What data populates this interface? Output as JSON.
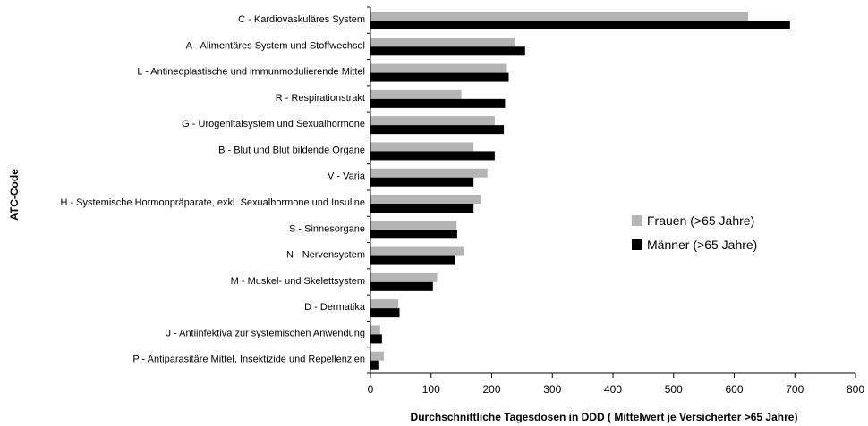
{
  "chart_data": {
    "type": "bar",
    "orientation": "horizontal",
    "categories": [
      "C - Kardiovaskuläres System",
      "A - Alimentäres System und Stoffwechsel",
      "L - Antineoplastische und immunmodulierende Mittel",
      "R - Respirationstrakt",
      "G - Urogenitalsystem und Sexualhormone",
      "B - Blut und Blut bildende Organe",
      "V - Varia",
      "H - Systemische Hormonpräparate, exkl. Sexualhormone und Insuline",
      "S - Sinnesorgane",
      "N - Nervensystem",
      "M - Muskel- und Skelettsystem",
      "D - Dermatika",
      "J - Antiinfektiva zur systemischen Anwendung",
      "P - Antiparasitäre Mittel, Insektizide und Repellenzien"
    ],
    "series": [
      {
        "name": "Frauen (>65 Jahre)",
        "color": "#b4b4b4",
        "values": [
          623,
          238,
          225,
          150,
          205,
          170,
          193,
          182,
          142,
          155,
          110,
          46,
          16,
          22
        ]
      },
      {
        "name": "Männer (>65 Jahre)",
        "color": "#000000",
        "values": [
          692,
          255,
          228,
          222,
          220,
          205,
          170,
          170,
          143,
          140,
          103,
          48,
          19,
          13
        ]
      }
    ],
    "xlabel": "Durchschnittliche Tagesdosen in DDD ( Mittelwert je Versicherter >65 Jahre)",
    "ylabel": "ATC-Code",
    "xlim": [
      0,
      800
    ],
    "xticks": [
      0,
      100,
      200,
      300,
      400,
      500,
      600,
      700,
      800
    ],
    "grid": false,
    "legend": "right"
  }
}
